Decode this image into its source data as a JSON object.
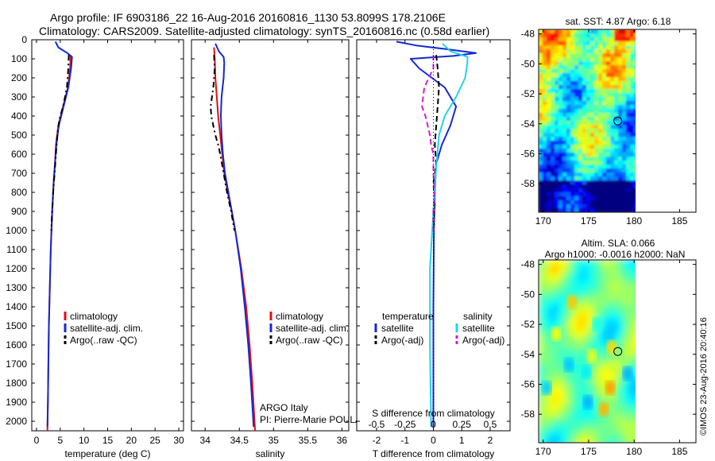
{
  "header": {
    "line1": "Argo profile: IF 6903186_22 16-Aug-2016 20160816_1130 53.8099S 178.2106E",
    "line2": "Climatology: CARS2009. Satellite-adjusted climatology: synTS_20160816.nc (0.58d earlier)"
  },
  "watermark": "©IMOS 23-Aug-2016 20:40:16",
  "colors": {
    "climatology": "#e01010",
    "satellite": "#1428d2",
    "argo": "#000000",
    "sal_sat": "#22d3e8",
    "sal_argo": "#d21ed2"
  },
  "chart_data": [
    {
      "type": "line",
      "xlabel": "temperature (deg C)",
      "xlim": [
        -1,
        31
      ],
      "xticks": [
        "0",
        "5",
        "10",
        "15",
        "20",
        "25",
        "30"
      ],
      "ylim": [
        0,
        2050
      ],
      "yticks": [
        "0",
        "100",
        "200",
        "300",
        "400",
        "500",
        "600",
        "700",
        "800",
        "900",
        "1000",
        "1100",
        "1200",
        "1300",
        "1400",
        "1500",
        "1600",
        "1700",
        "1800",
        "1900",
        "2000"
      ],
      "legend": [
        "climatology",
        "satellite-adj. clim.",
        "Argo(..raw -QC)"
      ],
      "series": [
        {
          "name": "climatology",
          "depth": [
            80,
            150,
            250,
            350,
            450,
            550,
            650,
            750,
            900,
            1100,
            1300,
            1500,
            1700,
            1900,
            2050
          ],
          "values": [
            7.2,
            7.1,
            6.6,
            5.6,
            4.6,
            4.1,
            3.9,
            3.6,
            3.3,
            3.0,
            2.8,
            2.6,
            2.5,
            2.4,
            2.3
          ]
        },
        {
          "name": "satellite-adj. clim.",
          "depth": [
            10,
            40,
            70,
            90,
            150,
            250,
            350,
            450,
            550,
            650,
            750,
            900,
            1100,
            1300,
            1500,
            1700,
            1900,
            2030
          ],
          "values": [
            4.0,
            4.6,
            6.5,
            7.5,
            7.3,
            6.7,
            5.7,
            4.7,
            4.2,
            3.9,
            3.6,
            3.3,
            3.0,
            2.8,
            2.6,
            2.5,
            2.4,
            2.3
          ]
        },
        {
          "name": "Argo(..raw -QC)",
          "depth": [
            80,
            150,
            250,
            350,
            420,
            500,
            600,
            700,
            800,
            900,
            1000
          ],
          "values": [
            6.8,
            6.7,
            6.4,
            5.6,
            4.8,
            4.4,
            4.1,
            3.8,
            3.5,
            3.3,
            3.1
          ]
        }
      ]
    },
    {
      "type": "line",
      "xlabel": "salinity",
      "xlim": [
        33.8,
        36.1
      ],
      "xticks": [
        "34",
        "34.5",
        "35",
        "35.5",
        "36"
      ],
      "ylim": [
        0,
        2050
      ],
      "legend": [
        "climatology",
        "satellite-adj. clim.",
        "Argo(..raw -QC)"
      ],
      "annotations": [
        "ARGO Italy",
        "PI: Pierre-Marie POULAIN"
      ],
      "series": [
        {
          "name": "climatology",
          "depth": [
            40,
            100,
            200,
            300,
            400,
            500,
            600,
            700,
            800,
            900,
            1000,
            1200,
            1400,
            1600,
            1800,
            2050
          ],
          "values": [
            34.13,
            34.14,
            34.15,
            34.17,
            34.19,
            34.22,
            34.25,
            34.28,
            34.33,
            34.39,
            34.44,
            34.53,
            34.6,
            34.65,
            34.69,
            34.73
          ]
        },
        {
          "name": "satellite-adj. clim.",
          "depth": [
            20,
            60,
            90,
            120,
            200,
            300,
            400,
            500,
            600,
            700,
            800,
            900,
            1000,
            1200,
            1400,
            1600,
            1800,
            2030
          ],
          "values": [
            34.15,
            34.2,
            34.27,
            34.28,
            34.27,
            34.24,
            34.23,
            34.24,
            34.26,
            34.29,
            34.34,
            34.39,
            34.44,
            34.52,
            34.58,
            34.63,
            34.67,
            34.71
          ]
        },
        {
          "name": "Argo(..raw -QC)",
          "depth": [
            80,
            150,
            250,
            300,
            350,
            400,
            450,
            500,
            550,
            600,
            700,
            800,
            900,
            1000
          ],
          "values": [
            34.13,
            34.14,
            34.12,
            34.1,
            34.08,
            34.09,
            34.12,
            34.15,
            34.19,
            34.22,
            34.27,
            34.32,
            34.38,
            34.43
          ]
        }
      ]
    },
    {
      "type": "line",
      "xlabel": "T difference from climatology",
      "xlabel_top": "S difference from climatology",
      "xlim": [
        -2.7,
        2.7
      ],
      "xticks": [
        "-2",
        "-1",
        "0",
        "1",
        "2"
      ],
      "xticks_top": [
        "-0.5",
        "-0.25",
        "0",
        "0.25",
        "0.5"
      ],
      "ylim": [
        0,
        2050
      ],
      "legend": {
        "headers": [
          "temperature",
          "salinity"
        ],
        "items": [
          "satellite",
          "Argo(-adj)",
          "satellite",
          "Argo(-adj)"
        ]
      },
      "series": [
        {
          "name": "temperature satellite",
          "depth": [
            10,
            30,
            50,
            70,
            85,
            100,
            150,
            250,
            350,
            450,
            550,
            650,
            800,
            1000,
            1400,
            2030
          ],
          "values": [
            -1.3,
            -0.6,
            0.5,
            1.5,
            0.7,
            -0.8,
            -0.5,
            0.4,
            0.8,
            0.6,
            0.3,
            0.1,
            0.05,
            0.02,
            0,
            0
          ]
        },
        {
          "name": "temperature Argo(-adj)",
          "depth": [
            80,
            150,
            250,
            350,
            450,
            550,
            650,
            750,
            850,
            1000
          ],
          "values": [
            0.1,
            0.15,
            0.2,
            0.15,
            0.1,
            0.05,
            0.1,
            0.0,
            0.05,
            0.0
          ]
        },
        {
          "name": "salinity satellite",
          "depth": [
            20,
            60,
            90,
            120,
            200,
            300,
            400,
            500,
            700,
            900,
            1200,
            1600,
            2030
          ],
          "values": [
            0.08,
            0.15,
            0.3,
            0.3,
            0.28,
            0.2,
            0.1,
            0.05,
            0.02,
            0.0,
            -0.03,
            -0.03,
            -0.02
          ]
        },
        {
          "name": "salinity Argo(-adj)",
          "depth": [
            80,
            150,
            250,
            300,
            350,
            400,
            450,
            500,
            550,
            600,
            700,
            800,
            900,
            1000
          ],
          "values": [
            0.0,
            0.0,
            -0.08,
            -0.09,
            -0.1,
            -0.07,
            -0.05,
            -0.03,
            -0.02,
            0.0,
            0.0,
            0.01,
            0.0,
            0.0
          ]
        }
      ]
    },
    {
      "type": "heatmap",
      "title": "sat. SST: 4.87  Argo: 6.18",
      "xlim": [
        169.5,
        186.8
      ],
      "ylim": [
        -59.9,
        -47.7
      ],
      "xticks": [
        "170",
        "175",
        "180",
        "185"
      ],
      "yticks": [
        "-48",
        "-50",
        "-52",
        "-54",
        "-56",
        "-58"
      ],
      "marker": {
        "lon": 178.21,
        "lat": -53.81
      }
    },
    {
      "type": "heatmap",
      "title": "Altim. SLA: 0.066",
      "subtitle": "Argo h1000: -0.0016  h2000: NaN",
      "xlim": [
        169.5,
        186.8
      ],
      "ylim": [
        -59.9,
        -47.7
      ],
      "xticks": [
        "170",
        "175",
        "180",
        "185"
      ],
      "yticks": [
        "-48",
        "-50",
        "-52",
        "-54",
        "-56",
        "-58"
      ],
      "marker": {
        "lon": 178.21,
        "lat": -53.81
      }
    }
  ]
}
